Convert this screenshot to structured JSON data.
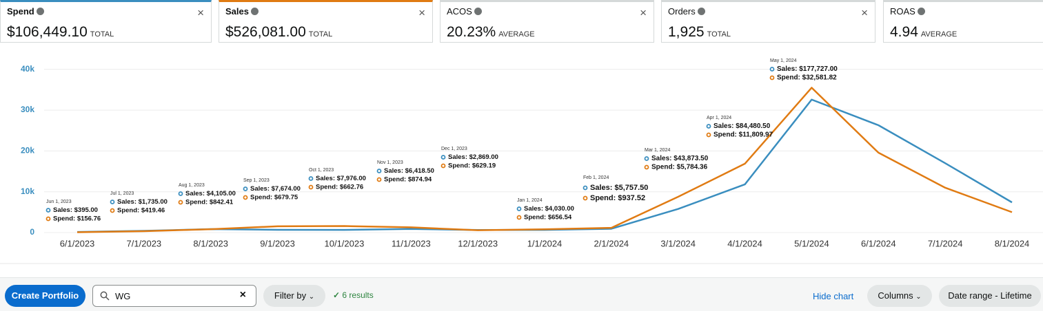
{
  "metrics": [
    {
      "name": "Spend",
      "value": "$106,449.10",
      "unit": "TOTAL"
    },
    {
      "name": "Sales",
      "value": "$526,081.00",
      "unit": "TOTAL"
    },
    {
      "name": "ACOS",
      "value": "20.23%",
      "unit": "AVERAGE"
    },
    {
      "name": "Orders",
      "value": "1,925",
      "unit": "TOTAL"
    },
    {
      "name": "ROAS",
      "value": "4.94",
      "unit": "AVERAGE"
    }
  ],
  "chart_data": {
    "type": "line",
    "categories": [
      "6/1/2023",
      "7/1/2023",
      "8/1/2023",
      "9/1/2023",
      "10/1/2023",
      "11/1/2023",
      "12/1/2023",
      "1/1/2024",
      "2/1/2024",
      "3/1/2024",
      "4/1/2024",
      "5/1/2024",
      "6/1/2024",
      "7/1/2024",
      "8/1/2024"
    ],
    "point_labels": [
      "Jun 1, 2023",
      "Jul 1, 2023",
      "Aug 1, 2023",
      "Sep 1, 2023",
      "Oct 1, 2023",
      "Nov 1, 2023",
      "Dec 1, 2023",
      "Jan 1, 2024",
      "Feb 1, 2024",
      "Mar 1, 2024",
      "Apr 1, 2024",
      "May 1, 2024",
      null,
      null,
      null
    ],
    "series": [
      {
        "name": "Spend",
        "color": "#3a8ebf",
        "values": [
          156.76,
          419.46,
          842.41,
          679.75,
          662.76,
          874.94,
          629.19,
          656.54,
          937.52,
          5784.36,
          11809.97,
          32581.82,
          26300,
          17000,
          7400
        ],
        "value_labels": [
          "Spend: $156.76",
          "Spend: $419.46",
          "Spend: $842.41",
          "Spend: $679.75",
          "Spend: $662.76",
          "Spend: $874.94",
          "Spend: $629.19",
          "Spend: $656.54",
          "Spend: $937.52",
          "Spend: $5,784.36",
          "Spend: $11,809.97",
          "Spend: $32,581.82",
          null,
          null,
          null
        ]
      },
      {
        "name": "Sales",
        "color": "#e07b13",
        "axis": "y2",
        "values": [
          395,
          1735,
          4105,
          7674,
          7976,
          6418.5,
          2869,
          4030,
          5757.5,
          43873.5,
          84480.5,
          177727,
          98000,
          55000,
          25000
        ],
        "value_labels": [
          "Sales: $395.00",
          "Sales: $1,735.00",
          "Sales: $4,105.00",
          "Sales: $7,674.00",
          "Sales: $7,976.00",
          "Sales: $6,418.50",
          "Sales: $2,869.00",
          "Sales: $4,030.00",
          "Sales: $5,757.50",
          "Sales: $43,873.50",
          "Sales: $84,480.50",
          "Sales: $177,727.00",
          null,
          null,
          null
        ]
      }
    ],
    "ylim": [
      0,
      43500
    ],
    "yticks": [
      0,
      {
        "value": 10000,
        "label": "10k"
      },
      {
        "value": 20000,
        "label": "20k"
      },
      {
        "value": 30000,
        "label": "30k"
      },
      {
        "value": 40000,
        "label": "40k"
      }
    ],
    "y2lim": [
      0,
      217800
    ],
    "grid": true
  },
  "toolbar": {
    "create_button": "Create Portfolio",
    "search": "WG",
    "filter": "Filter by",
    "results": "6 results",
    "hide_chart": "Hide chart",
    "columns": "Columns",
    "date_range": "Date range - Lifetime"
  }
}
